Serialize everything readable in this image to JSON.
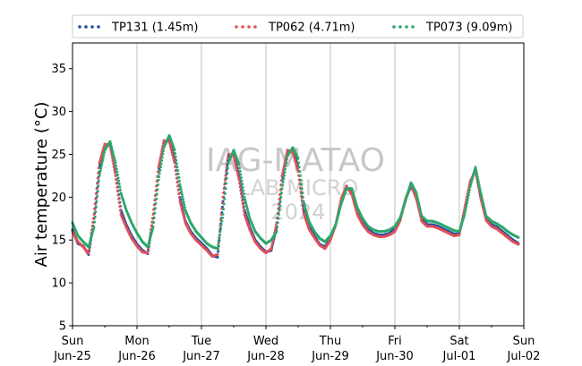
{
  "chart_data": {
    "type": "scatter",
    "title": "",
    "ylabel": "Air temperature (°C)",
    "xlabel": "",
    "ylim": [
      5,
      38
    ],
    "y_ticks": [
      5,
      10,
      15,
      20,
      25,
      30,
      35
    ],
    "x_start": "2024-06-25 00:00",
    "x_end": "2024-07-02 00:00",
    "x_ticks": [
      {
        "day": "Sun",
        "date": "Jun-25"
      },
      {
        "day": "Mon",
        "date": "Jun-26"
      },
      {
        "day": "Tue",
        "date": "Jun-27"
      },
      {
        "day": "Wed",
        "date": "Jun-28"
      },
      {
        "day": "Thu",
        "date": "Jun-29"
      },
      {
        "day": "Fri",
        "date": "Jun-30"
      },
      {
        "day": "Sat",
        "date": "Jul-01"
      },
      {
        "day": "Sun",
        "date": "Jul-02"
      }
    ],
    "grid": "vertical",
    "legend_position": "top",
    "watermark": [
      "IAG-MATAO",
      "LAB MICRO",
      "2024"
    ],
    "series": [
      {
        "name": "TP131 (1.45m)",
        "color": "#1f4e9c",
        "points": [
          [
            "2024-06-25 00:00",
            16.2
          ],
          [
            "2024-06-25 02:00",
            14.6
          ],
          [
            "2024-06-25 04:00",
            14.3
          ],
          [
            "2024-06-25 06:00",
            13.3
          ],
          [
            "2024-06-25 08:00",
            17.5
          ],
          [
            "2024-06-25 10:00",
            23.5
          ],
          [
            "2024-06-25 12:00",
            25.8
          ],
          [
            "2024-06-25 14:00",
            26.2
          ],
          [
            "2024-06-25 16:00",
            23.0
          ],
          [
            "2024-06-25 18:00",
            18.5
          ],
          [
            "2024-06-25 20:00",
            16.8
          ],
          [
            "2024-06-25 22:00",
            15.5
          ],
          [
            "2024-06-26 00:00",
            14.5
          ],
          [
            "2024-06-26 02:00",
            13.8
          ],
          [
            "2024-06-26 04:00",
            13.4
          ],
          [
            "2024-06-26 06:00",
            17.5
          ],
          [
            "2024-06-26 08:00",
            23.0
          ],
          [
            "2024-06-26 10:00",
            26.3
          ],
          [
            "2024-06-26 12:00",
            26.8
          ],
          [
            "2024-06-26 14:00",
            24.5
          ],
          [
            "2024-06-26 16:00",
            20.0
          ],
          [
            "2024-06-26 18:00",
            17.2
          ],
          [
            "2024-06-26 20:00",
            16.0
          ],
          [
            "2024-06-26 22:00",
            15.2
          ],
          [
            "2024-06-27 00:00",
            14.6
          ],
          [
            "2024-06-27 02:00",
            14.0
          ],
          [
            "2024-06-27 04:00",
            13.2
          ],
          [
            "2024-06-27 06:00",
            13.0
          ],
          [
            "2024-06-27 08:00",
            19.5
          ],
          [
            "2024-06-27 10:00",
            24.8
          ],
          [
            "2024-06-27 12:00",
            25.0
          ],
          [
            "2024-06-27 14:00",
            22.5
          ],
          [
            "2024-06-27 16:00",
            18.5
          ],
          [
            "2024-06-27 18:00",
            16.5
          ],
          [
            "2024-06-27 20:00",
            15.0
          ],
          [
            "2024-06-27 22:00",
            14.2
          ],
          [
            "2024-06-28 00:00",
            13.6
          ],
          [
            "2024-06-28 02:00",
            13.8
          ],
          [
            "2024-06-28 04:00",
            16.5
          ],
          [
            "2024-06-28 06:00",
            22.0
          ],
          [
            "2024-06-28 08:00",
            25.3
          ],
          [
            "2024-06-28 10:00",
            25.4
          ],
          [
            "2024-06-28 12:00",
            23.5
          ],
          [
            "2024-06-28 14:00",
            18.5
          ],
          [
            "2024-06-28 16:00",
            16.5
          ],
          [
            "2024-06-28 18:00",
            15.5
          ],
          [
            "2024-06-28 20:00",
            14.5
          ],
          [
            "2024-06-28 22:00",
            14.2
          ],
          [
            "2024-06-29 00:00",
            15.2
          ],
          [
            "2024-06-29 02:00",
            16.8
          ],
          [
            "2024-06-29 04:00",
            19.5
          ],
          [
            "2024-06-29 06:00",
            21.2
          ],
          [
            "2024-06-29 08:00",
            20.5
          ],
          [
            "2024-06-29 10:00",
            18.2
          ],
          [
            "2024-06-29 12:00",
            17.0
          ],
          [
            "2024-06-29 14:00",
            16.2
          ],
          [
            "2024-06-29 16:00",
            15.8
          ],
          [
            "2024-06-29 18:00",
            15.6
          ],
          [
            "2024-06-29 20:00",
            15.6
          ],
          [
            "2024-06-29 22:00",
            15.8
          ],
          [
            "2024-06-30 00:00",
            16.3
          ],
          [
            "2024-06-30 02:00",
            17.5
          ],
          [
            "2024-06-30 04:00",
            19.8
          ],
          [
            "2024-06-30 06:00",
            21.3
          ],
          [
            "2024-06-30 08:00",
            20.0
          ],
          [
            "2024-06-30 10:00",
            17.5
          ],
          [
            "2024-06-30 12:00",
            16.8
          ],
          [
            "2024-06-30 14:00",
            16.8
          ],
          [
            "2024-06-30 16:00",
            16.6
          ],
          [
            "2024-06-30 18:00",
            16.3
          ],
          [
            "2024-06-30 20:00",
            16.0
          ],
          [
            "2024-06-30 22:00",
            15.7
          ],
          [
            "2024-07-01 00:00",
            15.7
          ],
          [
            "2024-07-01 02:00",
            18.5
          ],
          [
            "2024-07-01 04:00",
            21.5
          ],
          [
            "2024-07-01 06:00",
            23.3
          ],
          [
            "2024-07-01 08:00",
            20.0
          ],
          [
            "2024-07-01 10:00",
            17.5
          ],
          [
            "2024-07-01 12:00",
            16.8
          ],
          [
            "2024-07-01 14:00",
            16.5
          ],
          [
            "2024-07-01 16:00",
            16.0
          ],
          [
            "2024-07-01 18:00",
            15.5
          ],
          [
            "2024-07-01 20:00",
            15.0
          ],
          [
            "2024-07-01 22:00",
            14.6
          ]
        ]
      },
      {
        "name": "TP062 (4.71m)",
        "color": "#e0505a",
        "points": [
          [
            "2024-06-25 00:00",
            16.0
          ],
          [
            "2024-06-25 02:00",
            14.8
          ],
          [
            "2024-06-25 04:00",
            14.2
          ],
          [
            "2024-06-25 06:00",
            13.4
          ],
          [
            "2024-06-25 08:00",
            18.0
          ],
          [
            "2024-06-25 10:00",
            24.0
          ],
          [
            "2024-06-25 12:00",
            26.2
          ],
          [
            "2024-06-25 14:00",
            26.0
          ],
          [
            "2024-06-25 16:00",
            22.5
          ],
          [
            "2024-06-25 18:00",
            18.0
          ],
          [
            "2024-06-25 20:00",
            16.5
          ],
          [
            "2024-06-25 22:00",
            15.2
          ],
          [
            "2024-06-26 00:00",
            14.3
          ],
          [
            "2024-06-26 02:00",
            13.6
          ],
          [
            "2024-06-26 04:00",
            13.5
          ],
          [
            "2024-06-26 06:00",
            18.0
          ],
          [
            "2024-06-26 08:00",
            23.5
          ],
          [
            "2024-06-26 10:00",
            26.6
          ],
          [
            "2024-06-26 12:00",
            26.5
          ],
          [
            "2024-06-26 14:00",
            24.0
          ],
          [
            "2024-06-26 16:00",
            19.5
          ],
          [
            "2024-06-26 18:00",
            17.0
          ],
          [
            "2024-06-26 20:00",
            15.8
          ],
          [
            "2024-06-26 22:00",
            15.0
          ],
          [
            "2024-06-27 00:00",
            14.4
          ],
          [
            "2024-06-27 02:00",
            13.8
          ],
          [
            "2024-06-27 04:00",
            13.1
          ],
          [
            "2024-06-27 06:00",
            13.3
          ],
          [
            "2024-06-27 08:00",
            20.0
          ],
          [
            "2024-06-27 10:00",
            25.0
          ],
          [
            "2024-06-27 12:00",
            24.8
          ],
          [
            "2024-06-27 14:00",
            22.0
          ],
          [
            "2024-06-27 16:00",
            18.0
          ],
          [
            "2024-06-27 18:00",
            16.2
          ],
          [
            "2024-06-27 20:00",
            14.8
          ],
          [
            "2024-06-27 22:00",
            14.0
          ],
          [
            "2024-06-28 00:00",
            13.5
          ],
          [
            "2024-06-28 02:00",
            14.0
          ],
          [
            "2024-06-28 04:00",
            17.0
          ],
          [
            "2024-06-28 06:00",
            22.5
          ],
          [
            "2024-06-28 08:00",
            25.5
          ],
          [
            "2024-06-28 10:00",
            25.2
          ],
          [
            "2024-06-28 12:00",
            23.0
          ],
          [
            "2024-06-28 14:00",
            18.2
          ],
          [
            "2024-06-28 16:00",
            16.3
          ],
          [
            "2024-06-28 18:00",
            15.3
          ],
          [
            "2024-06-28 20:00",
            14.4
          ],
          [
            "2024-06-28 22:00",
            14.0
          ],
          [
            "2024-06-29 00:00",
            15.0
          ],
          [
            "2024-06-29 02:00",
            16.8
          ],
          [
            "2024-06-29 04:00",
            19.8
          ],
          [
            "2024-06-29 06:00",
            21.3
          ],
          [
            "2024-06-29 08:00",
            20.3
          ],
          [
            "2024-06-29 10:00",
            18.0
          ],
          [
            "2024-06-29 12:00",
            16.8
          ],
          [
            "2024-06-29 14:00",
            16.0
          ],
          [
            "2024-06-29 16:00",
            15.6
          ],
          [
            "2024-06-29 18:00",
            15.4
          ],
          [
            "2024-06-29 20:00",
            15.4
          ],
          [
            "2024-06-29 22:00",
            15.6
          ],
          [
            "2024-06-30 00:00",
            16.0
          ],
          [
            "2024-06-30 02:00",
            17.3
          ],
          [
            "2024-06-30 04:00",
            19.8
          ],
          [
            "2024-06-30 06:00",
            21.5
          ],
          [
            "2024-06-30 08:00",
            19.8
          ],
          [
            "2024-06-30 10:00",
            17.2
          ],
          [
            "2024-06-30 12:00",
            16.6
          ],
          [
            "2024-06-30 14:00",
            16.6
          ],
          [
            "2024-06-30 16:00",
            16.4
          ],
          [
            "2024-06-30 18:00",
            16.1
          ],
          [
            "2024-06-30 20:00",
            15.8
          ],
          [
            "2024-06-30 22:00",
            15.5
          ],
          [
            "2024-07-01 00:00",
            15.6
          ],
          [
            "2024-07-01 02:00",
            18.8
          ],
          [
            "2024-07-01 04:00",
            21.8
          ],
          [
            "2024-07-01 06:00",
            23.1
          ],
          [
            "2024-07-01 08:00",
            19.8
          ],
          [
            "2024-07-01 10:00",
            17.3
          ],
          [
            "2024-07-01 12:00",
            16.6
          ],
          [
            "2024-07-01 14:00",
            16.3
          ],
          [
            "2024-07-01 16:00",
            15.8
          ],
          [
            "2024-07-01 18:00",
            15.3
          ],
          [
            "2024-07-01 20:00",
            14.8
          ],
          [
            "2024-07-01 22:00",
            14.5
          ]
        ]
      },
      {
        "name": "TP073 (9.09m)",
        "color": "#2aa86b",
        "points": [
          [
            "2024-06-25 00:00",
            17.0
          ],
          [
            "2024-06-25 02:00",
            15.5
          ],
          [
            "2024-06-25 04:00",
            14.8
          ],
          [
            "2024-06-25 06:00",
            14.2
          ],
          [
            "2024-06-25 08:00",
            16.5
          ],
          [
            "2024-06-25 10:00",
            22.5
          ],
          [
            "2024-06-25 12:00",
            25.5
          ],
          [
            "2024-06-25 14:00",
            26.5
          ],
          [
            "2024-06-25 16:00",
            24.0
          ],
          [
            "2024-06-25 18:00",
            20.5
          ],
          [
            "2024-06-25 20:00",
            18.5
          ],
          [
            "2024-06-25 22:00",
            17.0
          ],
          [
            "2024-06-26 00:00",
            15.8
          ],
          [
            "2024-06-26 02:00",
            14.8
          ],
          [
            "2024-06-26 04:00",
            14.2
          ],
          [
            "2024-06-26 06:00",
            16.5
          ],
          [
            "2024-06-26 08:00",
            22.0
          ],
          [
            "2024-06-26 10:00",
            25.8
          ],
          [
            "2024-06-26 12:00",
            27.2
          ],
          [
            "2024-06-26 14:00",
            25.5
          ],
          [
            "2024-06-26 16:00",
            21.5
          ],
          [
            "2024-06-26 18:00",
            18.5
          ],
          [
            "2024-06-26 20:00",
            17.0
          ],
          [
            "2024-06-26 22:00",
            16.0
          ],
          [
            "2024-06-27 00:00",
            15.3
          ],
          [
            "2024-06-27 02:00",
            14.6
          ],
          [
            "2024-06-27 04:00",
            14.2
          ],
          [
            "2024-06-27 06:00",
            14.0
          ],
          [
            "2024-06-27 08:00",
            18.0
          ],
          [
            "2024-06-27 10:00",
            24.0
          ],
          [
            "2024-06-27 12:00",
            25.5
          ],
          [
            "2024-06-27 14:00",
            23.8
          ],
          [
            "2024-06-27 16:00",
            20.0
          ],
          [
            "2024-06-27 18:00",
            17.5
          ],
          [
            "2024-06-27 20:00",
            16.0
          ],
          [
            "2024-06-27 22:00",
            15.2
          ],
          [
            "2024-06-28 00:00",
            14.6
          ],
          [
            "2024-06-28 02:00",
            15.0
          ],
          [
            "2024-06-28 04:00",
            16.0
          ],
          [
            "2024-06-28 06:00",
            21.0
          ],
          [
            "2024-06-28 08:00",
            24.8
          ],
          [
            "2024-06-28 10:00",
            25.8
          ],
          [
            "2024-06-28 12:00",
            24.5
          ],
          [
            "2024-06-28 14:00",
            19.5
          ],
          [
            "2024-06-28 16:00",
            17.2
          ],
          [
            "2024-06-28 18:00",
            16.0
          ],
          [
            "2024-06-28 20:00",
            15.2
          ],
          [
            "2024-06-28 22:00",
            14.8
          ],
          [
            "2024-06-29 00:00",
            15.5
          ],
          [
            "2024-06-29 02:00",
            16.8
          ],
          [
            "2024-06-29 04:00",
            19.2
          ],
          [
            "2024-06-29 06:00",
            21.0
          ],
          [
            "2024-06-29 08:00",
            21.0
          ],
          [
            "2024-06-29 10:00",
            18.8
          ],
          [
            "2024-06-29 12:00",
            17.5
          ],
          [
            "2024-06-29 14:00",
            16.6
          ],
          [
            "2024-06-29 16:00",
            16.2
          ],
          [
            "2024-06-29 18:00",
            16.0
          ],
          [
            "2024-06-29 20:00",
            16.0
          ],
          [
            "2024-06-29 22:00",
            16.2
          ],
          [
            "2024-06-30 00:00",
            16.6
          ],
          [
            "2024-06-30 02:00",
            17.6
          ],
          [
            "2024-06-30 04:00",
            19.6
          ],
          [
            "2024-06-30 06:00",
            21.7
          ],
          [
            "2024-06-30 08:00",
            20.5
          ],
          [
            "2024-06-30 10:00",
            17.8
          ],
          [
            "2024-06-30 12:00",
            17.2
          ],
          [
            "2024-06-30 14:00",
            17.2
          ],
          [
            "2024-06-30 16:00",
            17.0
          ],
          [
            "2024-06-30 18:00",
            16.7
          ],
          [
            "2024-06-30 20:00",
            16.4
          ],
          [
            "2024-06-30 22:00",
            16.1
          ],
          [
            "2024-07-01 00:00",
            16.0
          ],
          [
            "2024-07-01 02:00",
            18.0
          ],
          [
            "2024-07-01 04:00",
            21.2
          ],
          [
            "2024-07-01 06:00",
            23.5
          ],
          [
            "2024-07-01 08:00",
            20.5
          ],
          [
            "2024-07-01 10:00",
            17.8
          ],
          [
            "2024-07-01 12:00",
            17.2
          ],
          [
            "2024-07-01 14:00",
            16.9
          ],
          [
            "2024-07-01 16:00",
            16.5
          ],
          [
            "2024-07-01 18:00",
            16.0
          ],
          [
            "2024-07-01 20:00",
            15.6
          ],
          [
            "2024-07-01 22:00",
            15.3
          ]
        ]
      }
    ]
  }
}
